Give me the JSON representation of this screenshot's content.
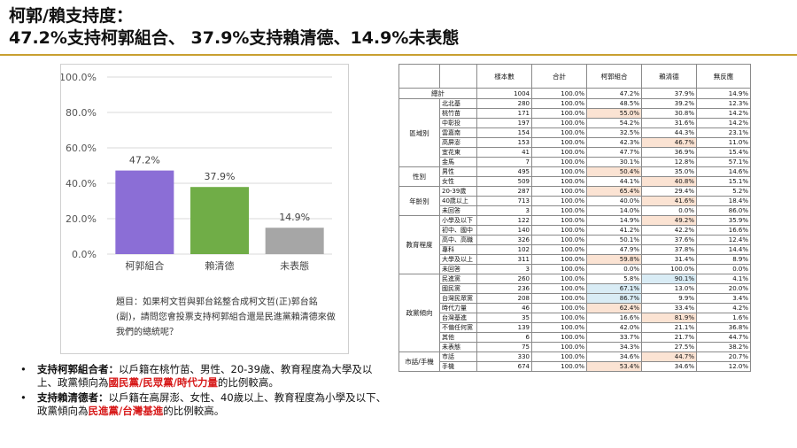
{
  "title": {
    "line1": "柯郭/賴支持度：",
    "line2": "47.2%支持柯郭組合、 37.9%支持賴清德、14.9%未表態"
  },
  "colors": {
    "rule": "#c8a030",
    "bar_purple": "#8b6ed6",
    "bar_green": "#70ad47",
    "bar_gray": "#a6a6a6",
    "highlight_red": "#d71a1a",
    "cell_orange": "#fbe3d3",
    "cell_blue": "#d9ecf5"
  },
  "chart_data": {
    "type": "bar",
    "categories": [
      "柯郭組合",
      "賴清德",
      "未表態"
    ],
    "values": [
      47.2,
      37.9,
      14.9
    ],
    "value_labels": [
      "47.2%",
      "37.9%",
      "14.9%"
    ],
    "yticks": [
      "0.0%",
      "20.0%",
      "40.0%",
      "60.0%",
      "80.0%",
      "100.0%"
    ],
    "ylim": [
      0,
      100
    ],
    "grid": true,
    "colors": [
      "#8b6ed6",
      "#70ad47",
      "#a6a6a6"
    ],
    "title": "",
    "xlabel": "",
    "ylabel": ""
  },
  "chart_note": "題目：如果柯文哲與郭台銘整合成柯文哲(正)郭台銘(副)，請問您會投票支持柯郭組合還是民進黨賴清德來做我們的總統呢？",
  "bullets": [
    {
      "lead": "支持柯郭組合者：",
      "text": "以戶籍在桃竹苗、男性、20-39歲、教育程度為大學及以上、政黨傾向為",
      "highlight": "國民黨/民眾黨/時代力量",
      "tail": "的比例較高。"
    },
    {
      "lead": "支持賴清德者：",
      "text": "以戶籍在高屏澎、女性、40歲以上、教育程度為小學及以下、政黨傾向為",
      "highlight": "民進黨/台灣基進",
      "tail": "的比例較高。"
    }
  ],
  "table": {
    "headers": [
      "",
      "",
      "樣本數",
      "合計",
      "柯郭組合",
      "賴清德",
      "無反應"
    ],
    "total_label": "總計",
    "total": [
      "1004",
      "100.0%",
      "47.2%",
      "37.9%",
      "14.9%"
    ],
    "groups": [
      {
        "name": "區域別",
        "rows": [
          {
            "label": "北北基",
            "values": [
              "280",
              "100.0%",
              "48.5%",
              "39.2%",
              "12.3%"
            ],
            "hl": [
              null,
              null,
              null,
              null,
              null
            ]
          },
          {
            "label": "桃竹苗",
            "values": [
              "171",
              "100.0%",
              "55.0%",
              "30.8%",
              "14.2%"
            ],
            "hl": [
              null,
              null,
              "o",
              null,
              null
            ]
          },
          {
            "label": "中彰投",
            "values": [
              "197",
              "100.0%",
              "54.2%",
              "31.6%",
              "14.2%"
            ],
            "hl": [
              null,
              null,
              null,
              null,
              null
            ]
          },
          {
            "label": "雲嘉南",
            "values": [
              "154",
              "100.0%",
              "32.5%",
              "44.3%",
              "23.1%"
            ],
            "hl": [
              null,
              null,
              null,
              null,
              null
            ]
          },
          {
            "label": "高屏澎",
            "values": [
              "153",
              "100.0%",
              "42.3%",
              "46.7%",
              "11.0%"
            ],
            "hl": [
              null,
              null,
              null,
              "o",
              null
            ]
          },
          {
            "label": "宜花東",
            "values": [
              "41",
              "100.0%",
              "47.7%",
              "36.9%",
              "15.4%"
            ],
            "hl": [
              null,
              null,
              null,
              null,
              null
            ]
          },
          {
            "label": "金馬",
            "values": [
              "7",
              "100.0%",
              "30.1%",
              "12.8%",
              "57.1%"
            ],
            "hl": [
              null,
              null,
              null,
              null,
              null
            ]
          }
        ]
      },
      {
        "name": "性別",
        "rows": [
          {
            "label": "男性",
            "values": [
              "495",
              "100.0%",
              "50.4%",
              "35.0%",
              "14.6%"
            ],
            "hl": [
              null,
              null,
              "o",
              null,
              null
            ]
          },
          {
            "label": "女性",
            "values": [
              "509",
              "100.0%",
              "44.1%",
              "40.8%",
              "15.1%"
            ],
            "hl": [
              null,
              null,
              null,
              "o",
              null
            ]
          }
        ]
      },
      {
        "name": "年齡別",
        "rows": [
          {
            "label": "20-39歲",
            "values": [
              "287",
              "100.0%",
              "65.4%",
              "29.4%",
              "5.2%"
            ],
            "hl": [
              null,
              null,
              "o",
              null,
              null
            ]
          },
          {
            "label": "40歲以上",
            "values": [
              "713",
              "100.0%",
              "40.0%",
              "41.6%",
              "18.4%"
            ],
            "hl": [
              null,
              null,
              null,
              "o",
              null
            ]
          },
          {
            "label": "未回答",
            "values": [
              "3",
              "100.0%",
              "14.0%",
              "0.0%",
              "86.0%"
            ],
            "hl": [
              null,
              null,
              null,
              null,
              null
            ]
          }
        ]
      },
      {
        "name": "教育程度",
        "rows": [
          {
            "label": "小學及以下",
            "values": [
              "122",
              "100.0%",
              "14.9%",
              "49.2%",
              "35.9%"
            ],
            "hl": [
              null,
              null,
              null,
              "o",
              null
            ]
          },
          {
            "label": "初中、國中",
            "values": [
              "140",
              "100.0%",
              "41.2%",
              "42.2%",
              "16.6%"
            ],
            "hl": [
              null,
              null,
              null,
              null,
              null
            ]
          },
          {
            "label": "高中、高職",
            "values": [
              "326",
              "100.0%",
              "50.1%",
              "37.6%",
              "12.4%"
            ],
            "hl": [
              null,
              null,
              null,
              null,
              null
            ]
          },
          {
            "label": "專科",
            "values": [
              "102",
              "100.0%",
              "47.9%",
              "37.8%",
              "14.4%"
            ],
            "hl": [
              null,
              null,
              null,
              null,
              null
            ]
          },
          {
            "label": "大學及以上",
            "values": [
              "311",
              "100.0%",
              "59.8%",
              "31.4%",
              "8.9%"
            ],
            "hl": [
              null,
              null,
              "o",
              null,
              null
            ]
          },
          {
            "label": "未回答",
            "values": [
              "3",
              "100.0%",
              "0.0%",
              "100.0%",
              "0.0%"
            ],
            "hl": [
              null,
              null,
              null,
              null,
              null
            ]
          }
        ]
      },
      {
        "name": "政黨傾向",
        "rows": [
          {
            "label": "民進黨",
            "values": [
              "260",
              "100.0%",
              "5.8%",
              "90.1%",
              "4.1%"
            ],
            "hl": [
              null,
              null,
              null,
              "b",
              null
            ]
          },
          {
            "label": "國民黨",
            "values": [
              "236",
              "100.0%",
              "67.1%",
              "13.0%",
              "20.0%"
            ],
            "hl": [
              null,
              null,
              "b",
              null,
              null
            ]
          },
          {
            "label": "台灣民眾黨",
            "values": [
              "208",
              "100.0%",
              "86.7%",
              "9.9%",
              "3.4%"
            ],
            "hl": [
              null,
              null,
              "b",
              null,
              null
            ]
          },
          {
            "label": "時代力量",
            "values": [
              "46",
              "100.0%",
              "62.4%",
              "33.4%",
              "4.2%"
            ],
            "hl": [
              null,
              null,
              "o",
              null,
              null
            ]
          },
          {
            "label": "台灣基進",
            "values": [
              "35",
              "100.0%",
              "16.6%",
              "81.9%",
              "1.6%"
            ],
            "hl": [
              null,
              null,
              null,
              "o",
              null
            ]
          },
          {
            "label": "不偏任何黨",
            "values": [
              "139",
              "100.0%",
              "42.0%",
              "21.1%",
              "36.8%"
            ],
            "hl": [
              null,
              null,
              null,
              null,
              null
            ]
          },
          {
            "label": "其他",
            "values": [
              "6",
              "100.0%",
              "33.7%",
              "21.7%",
              "44.7%"
            ],
            "hl": [
              null,
              null,
              null,
              null,
              null
            ]
          },
          {
            "label": "未表態",
            "values": [
              "75",
              "100.0%",
              "34.3%",
              "27.5%",
              "38.2%"
            ],
            "hl": [
              null,
              null,
              null,
              null,
              null
            ]
          }
        ]
      },
      {
        "name": "市話/手機",
        "rows": [
          {
            "label": "市話",
            "values": [
              "330",
              "100.0%",
              "34.6%",
              "44.7%",
              "20.7%"
            ],
            "hl": [
              null,
              null,
              null,
              "o",
              null
            ]
          },
          {
            "label": "手機",
            "values": [
              "674",
              "100.0%",
              "53.4%",
              "34.6%",
              "12.0%"
            ],
            "hl": [
              null,
              null,
              "o",
              null,
              null
            ]
          }
        ]
      }
    ]
  }
}
